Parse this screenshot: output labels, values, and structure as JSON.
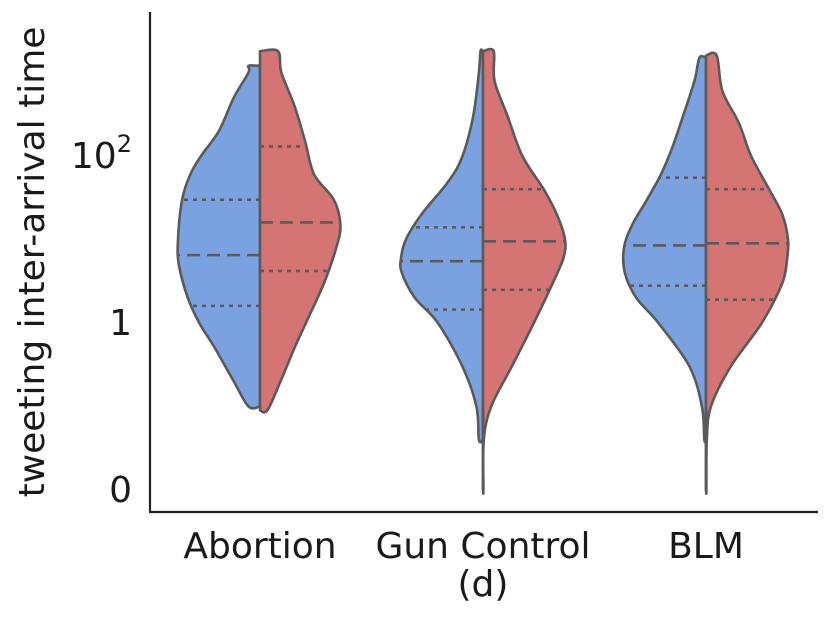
{
  "chart_data": {
    "type": "violin",
    "ylabel": "tweeting inter-arrival time",
    "xlabel": "(d)",
    "yscale": "log",
    "yticks": [
      {
        "label": "0",
        "value": 0.01
      },
      {
        "label": "1",
        "value": 1
      },
      {
        "label": "10",
        "sup": "2",
        "value": 100
      }
    ],
    "ylim": [
      0.01,
      3000
    ],
    "categories": [
      "Abortion",
      "Gun Control",
      "BLM"
    ],
    "series": [
      {
        "color": "#7aa2e0",
        "side": "left",
        "groups": [
          {
            "min": 0.1,
            "max": 1200,
            "q1": 1.6,
            "median": 6.5,
            "q3": 30,
            "density": [
              [
                0.1,
                0.14
              ],
              [
                0.2,
                0.32
              ],
              [
                0.5,
                0.55
              ],
              [
                1,
                0.74
              ],
              [
                2,
                0.88
              ],
              [
                5,
                0.99
              ],
              [
                10,
                1
              ],
              [
                30,
                0.95
              ],
              [
                60,
                0.85
              ],
              [
                100,
                0.72
              ],
              [
                200,
                0.5
              ],
              [
                500,
                0.32
              ],
              [
                1000,
                0.14
              ],
              [
                1200,
                0.14
              ]
            ]
          },
          {
            "min": 0.04,
            "max": 1800,
            "q1": 1.45,
            "median": 5.5,
            "q3": 14,
            "density": [
              [
                0.04,
                0.05
              ],
              [
                0.1,
                0.08
              ],
              [
                0.3,
                0.25
              ],
              [
                1,
                0.55
              ],
              [
                2,
                0.83
              ],
              [
                4,
                0.99
              ],
              [
                6,
                1
              ],
              [
                10,
                0.94
              ],
              [
                20,
                0.75
              ],
              [
                50,
                0.42
              ],
              [
                100,
                0.25
              ],
              [
                300,
                0.12
              ],
              [
                1000,
                0.05
              ],
              [
                1800,
                0.03
              ]
            ]
          },
          {
            "min": 0.04,
            "max": 1500,
            "q1": 2.8,
            "median": 8.5,
            "q3": 55,
            "density": [
              [
                0.04,
                0.02
              ],
              [
                0.1,
                0.05
              ],
              [
                0.3,
                0.2
              ],
              [
                1,
                0.58
              ],
              [
                2,
                0.85
              ],
              [
                4,
                0.99
              ],
              [
                8,
                1
              ],
              [
                15,
                0.9
              ],
              [
                30,
                0.72
              ],
              [
                60,
                0.55
              ],
              [
                120,
                0.42
              ],
              [
                300,
                0.28
              ],
              [
                800,
                0.14
              ],
              [
                1500,
                0.08
              ]
            ]
          }
        ]
      },
      {
        "color": "#d47574",
        "side": "right",
        "groups": [
          {
            "min": 0.09,
            "max": 1800,
            "q1": 4.2,
            "median": 16,
            "q3": 130,
            "density": [
              [
                0.09,
                0.09
              ],
              [
                0.2,
                0.25
              ],
              [
                0.5,
                0.42
              ],
              [
                1,
                0.56
              ],
              [
                3,
                0.78
              ],
              [
                8,
                0.93
              ],
              [
                15,
                0.98
              ],
              [
                30,
                0.9
              ],
              [
                60,
                0.66
              ],
              [
                150,
                0.55
              ],
              [
                400,
                0.42
              ],
              [
                1000,
                0.26
              ],
              [
                1800,
                0.22
              ]
            ]
          },
          {
            "min": 0.01,
            "max": 1800,
            "q1": 2.5,
            "median": 9.5,
            "q3": 40,
            "density": [
              [
                0.01,
                0.005
              ],
              [
                0.04,
                0.01
              ],
              [
                0.1,
                0.1
              ],
              [
                0.3,
                0.35
              ],
              [
                1,
                0.62
              ],
              [
                3,
                0.85
              ],
              [
                6,
                0.98
              ],
              [
                10,
                1
              ],
              [
                20,
                0.9
              ],
              [
                40,
                0.74
              ],
              [
                100,
                0.48
              ],
              [
                300,
                0.3
              ],
              [
                800,
                0.14
              ],
              [
                1800,
                0.13
              ]
            ]
          },
          {
            "min": 0.01,
            "max": 1600,
            "q1": 1.9,
            "median": 9,
            "q3": 40,
            "density": [
              [
                0.01,
                0.005
              ],
              [
                0.04,
                0.01
              ],
              [
                0.1,
                0.06
              ],
              [
                0.3,
                0.3
              ],
              [
                1,
                0.68
              ],
              [
                3,
                0.93
              ],
              [
                6,
                0.99
              ],
              [
                10,
                1
              ],
              [
                20,
                0.93
              ],
              [
                40,
                0.77
              ],
              [
                100,
                0.55
              ],
              [
                250,
                0.4
              ],
              [
                600,
                0.2
              ],
              [
                1600,
                0.13
              ]
            ]
          }
        ]
      }
    ]
  }
}
